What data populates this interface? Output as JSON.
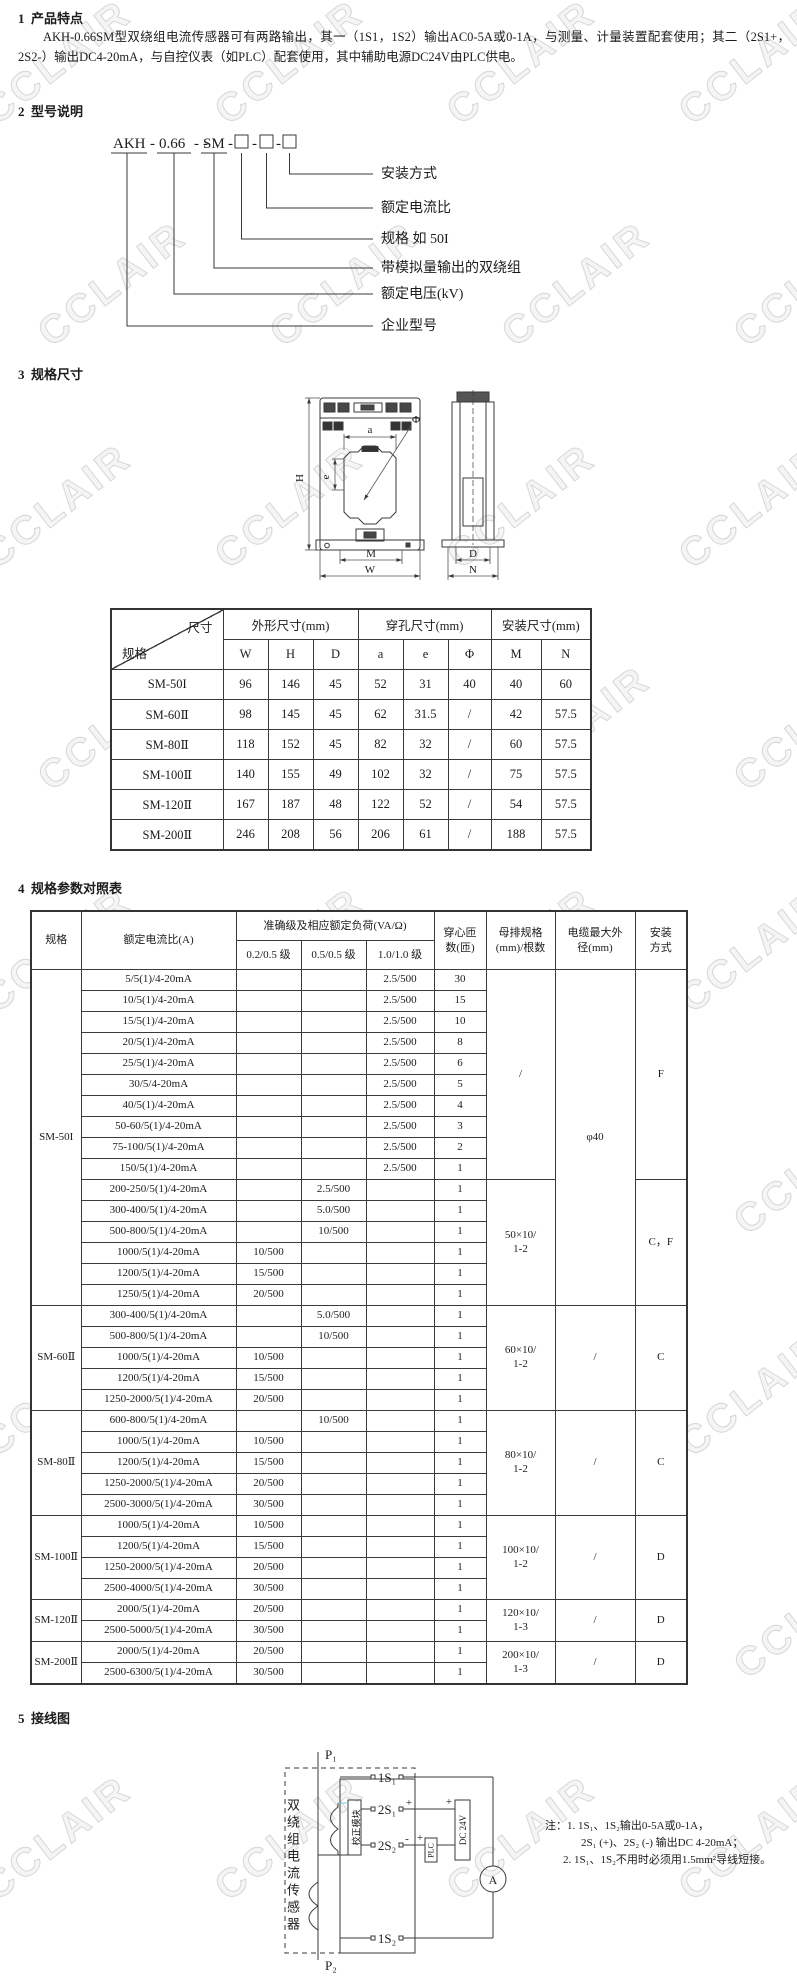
{
  "watermark": {
    "text": "CCLAIR"
  },
  "section1": {
    "heading": "1  产品特点",
    "body": "AKH-0.66SM型双绕组电流传感器可有两路输出，其一（1S1，1S2）输出AC0-5A或0-1A，与测量、计量装置配套使用；其二（2S1+，2S2-）输出DC4-20mA，与自控仪表（如PLC）配套使用，其中辅助电源DC24V由PLC供电。"
  },
  "section2": {
    "heading": "2  型号说明",
    "model": {
      "prefix": "AKH",
      "voltage": "0.66",
      "series": "SM",
      "sep": "-"
    },
    "labels": [
      "安装方式",
      "额定电流比",
      "规格 如 50I",
      "带模拟量输出的双绕组",
      "额定电压(kV)",
      "企业型号"
    ]
  },
  "section3": {
    "heading": "3  规格尺寸",
    "drawing": {
      "dims": [
        "H",
        "a",
        "e",
        "Φ",
        "M",
        "W",
        "D",
        "N"
      ]
    },
    "table": {
      "corner": {
        "top": "尺寸",
        "bottom": "规格"
      },
      "groups": [
        {
          "label": "外形尺寸(mm)",
          "span": 3
        },
        {
          "label": "穿孔尺寸(mm)",
          "span": 3
        },
        {
          "label": "安装尺寸(mm)",
          "span": 2
        }
      ],
      "columns": [
        "W",
        "H",
        "D",
        "a",
        "e",
        "Φ",
        "M",
        "N"
      ],
      "rows": [
        [
          "SM-50I",
          "96",
          "146",
          "45",
          "52",
          "31",
          "40",
          "40",
          "60"
        ],
        [
          "SM-60Ⅱ",
          "98",
          "145",
          "45",
          "62",
          "31.5",
          "/",
          "42",
          "57.5"
        ],
        [
          "SM-80Ⅱ",
          "118",
          "152",
          "45",
          "82",
          "32",
          "/",
          "60",
          "57.5"
        ],
        [
          "SM-100Ⅱ",
          "140",
          "155",
          "49",
          "102",
          "32",
          "/",
          "75",
          "57.5"
        ],
        [
          "SM-120Ⅱ",
          "167",
          "187",
          "48",
          "122",
          "52",
          "/",
          "54",
          "57.5"
        ],
        [
          "SM-200Ⅱ",
          "246",
          "208",
          "56",
          "206",
          "61",
          "/",
          "188",
          "57.5"
        ]
      ]
    }
  },
  "section4": {
    "heading": "4  规格参数对照表",
    "table": {
      "headers": {
        "spec": "规格",
        "ratio": "额定电流比(A)",
        "accuracy_group": "准确级及相应额定负荷(VA/Ω)",
        "accuracy_cols": [
          "0.2/0.5 级",
          "0.5/0.5 级",
          "1.0/1.0 级"
        ],
        "turns": "穿心匝\n数(匝)",
        "busbar": "母排规格\n(mm)/根数",
        "cable": "电缆最大外\n径(mm)",
        "mount": "安装\n方式"
      },
      "groups": [
        {
          "spec": "SM-50I",
          "rows": [
            [
              "5/5(1)/4-20mA",
              "",
              "",
              "2.5/500",
              "30"
            ],
            [
              "10/5(1)/4-20mA",
              "",
              "",
              "2.5/500",
              "15"
            ],
            [
              "15/5(1)/4-20mA",
              "",
              "",
              "2.5/500",
              "10"
            ],
            [
              "20/5(1)/4-20mA",
              "",
              "",
              "2.5/500",
              "8"
            ],
            [
              "25/5(1)/4-20mA",
              "",
              "",
              "2.5/500",
              "6"
            ],
            [
              "30/5/4-20mA",
              "",
              "",
              "2.5/500",
              "5"
            ],
            [
              "40/5(1)/4-20mA",
              "",
              "",
              "2.5/500",
              "4"
            ],
            [
              "50-60/5(1)/4-20mA",
              "",
              "",
              "2.5/500",
              "3"
            ],
            [
              "75-100/5(1)/4-20mA",
              "",
              "",
              "2.5/500",
              "2"
            ],
            [
              "150/5(1)/4-20mA",
              "",
              "",
              "2.5/500",
              "1"
            ],
            [
              "200-250/5(1)/4-20mA",
              "",
              "2.5/500",
              "",
              "1"
            ],
            [
              "300-400/5(1)/4-20mA",
              "",
              "5.0/500",
              "",
              "1"
            ],
            [
              "500-800/5(1)/4-20mA",
              "",
              "10/500",
              "",
              "1"
            ],
            [
              "1000/5(1)/4-20mA",
              "10/500",
              "",
              "",
              "1"
            ],
            [
              "1200/5(1)/4-20mA",
              "15/500",
              "",
              "",
              "1"
            ],
            [
              "1250/5(1)/4-20mA",
              "20/500",
              "",
              "",
              "1"
            ]
          ],
          "busbar": [
            {
              "text": "/",
              "from": 0,
              "to": 9
            },
            {
              "text": "50×10/\n1-2",
              "from": 10,
              "to": 15
            }
          ],
          "cable": [
            {
              "text": "φ40",
              "from": 0,
              "to": 15
            }
          ],
          "mount": [
            {
              "text": "F",
              "from": 0,
              "to": 9
            },
            {
              "text": "C，F",
              "from": 10,
              "to": 15
            }
          ]
        },
        {
          "spec": "SM-60Ⅱ",
          "rows": [
            [
              "300-400/5(1)/4-20mA",
              "",
              "5.0/500",
              "",
              "1"
            ],
            [
              "500-800/5(1)/4-20mA",
              "",
              "10/500",
              "",
              "1"
            ],
            [
              "1000/5(1)/4-20mA",
              "10/500",
              "",
              "",
              "1"
            ],
            [
              "1200/5(1)/4-20mA",
              "15/500",
              "",
              "",
              "1"
            ],
            [
              "1250-2000/5(1)/4-20mA",
              "20/500",
              "",
              "",
              "1"
            ]
          ],
          "busbar": [
            {
              "text": "60×10/\n1-2",
              "from": 0,
              "to": 4
            }
          ],
          "cable": [
            {
              "text": "/",
              "from": 0,
              "to": 4
            }
          ],
          "mount": [
            {
              "text": "C",
              "from": 0,
              "to": 4
            }
          ]
        },
        {
          "spec": "SM-80Ⅱ",
          "rows": [
            [
              "600-800/5(1)/4-20mA",
              "",
              "10/500",
              "",
              "1"
            ],
            [
              "1000/5(1)/4-20mA",
              "10/500",
              "",
              "",
              "1"
            ],
            [
              "1200/5(1)/4-20mA",
              "15/500",
              "",
              "",
              "1"
            ],
            [
              "1250-2000/5(1)/4-20mA",
              "20/500",
              "",
              "",
              "1"
            ],
            [
              "2500-3000/5(1)/4-20mA",
              "30/500",
              "",
              "",
              "1"
            ]
          ],
          "busbar": [
            {
              "text": "80×10/\n1-2",
              "from": 0,
              "to": 4
            }
          ],
          "cable": [
            {
              "text": "/",
              "from": 0,
              "to": 4
            }
          ],
          "mount": [
            {
              "text": "C",
              "from": 0,
              "to": 4
            }
          ]
        },
        {
          "spec": "SM-100Ⅱ",
          "rows": [
            [
              "1000/5(1)/4-20mA",
              "10/500",
              "",
              "",
              "1"
            ],
            [
              "1200/5(1)/4-20mA",
              "15/500",
              "",
              "",
              "1"
            ],
            [
              "1250-2000/5(1)/4-20mA",
              "20/500",
              "",
              "",
              "1"
            ],
            [
              "2500-4000/5(1)/4-20mA",
              "30/500",
              "",
              "",
              "1"
            ]
          ],
          "busbar": [
            {
              "text": "100×10/\n1-2",
              "from": 0,
              "to": 3
            }
          ],
          "cable": [
            {
              "text": "/",
              "from": 0,
              "to": 3
            }
          ],
          "mount": [
            {
              "text": "D",
              "from": 0,
              "to": 3
            }
          ]
        },
        {
          "spec": "SM-120Ⅱ",
          "rows": [
            [
              "2000/5(1)/4-20mA",
              "20/500",
              "",
              "",
              "1"
            ],
            [
              "2500-5000/5(1)/4-20mA",
              "30/500",
              "",
              "",
              "1"
            ]
          ],
          "busbar": [
            {
              "text": "120×10/\n1-3",
              "from": 0,
              "to": 1
            }
          ],
          "cable": [
            {
              "text": "/",
              "from": 0,
              "to": 1
            }
          ],
          "mount": [
            {
              "text": "D",
              "from": 0,
              "to": 1
            }
          ]
        },
        {
          "spec": "SM-200Ⅱ",
          "rows": [
            [
              "2000/5(1)/4-20mA",
              "20/500",
              "",
              "",
              "1"
            ],
            [
              "2500-6300/5(1)/4-20mA",
              "30/500",
              "",
              "",
              "1"
            ]
          ],
          "busbar": [
            {
              "text": "200×10/\n1-3",
              "from": 0,
              "to": 1
            }
          ],
          "cable": [
            {
              "text": "/",
              "from": 0,
              "to": 1
            }
          ],
          "mount": [
            {
              "text": "D",
              "from": 0,
              "to": 1
            }
          ]
        }
      ]
    }
  },
  "section5": {
    "heading": "5  接线图",
    "diagram": {
      "p1": "P₁",
      "p2": "P₂",
      "sensor": "双绕组电流传感器",
      "t1s1": "1S₁",
      "t2s1": "2S₁",
      "t2s2": "2S₂",
      "t1s2": "1S₂",
      "module": "校正模块",
      "plc": "PLC",
      "power": "DC 24V",
      "ammeter": "A",
      "signs": {
        "s2s1_inner": "+",
        "s2s1_outer": "+",
        "s2s2_inner": "-",
        "s2s2_outer": "+"
      }
    },
    "notes": [
      "注：1. 1S₁、1S₂输出0-5A或0-1A，",
      "2S₁ (+)、2S₂ (-) 输出DC 4-20mA；",
      "2. 1S₁、1S₂不用时必须用1.5mm²导线短接。"
    ]
  }
}
